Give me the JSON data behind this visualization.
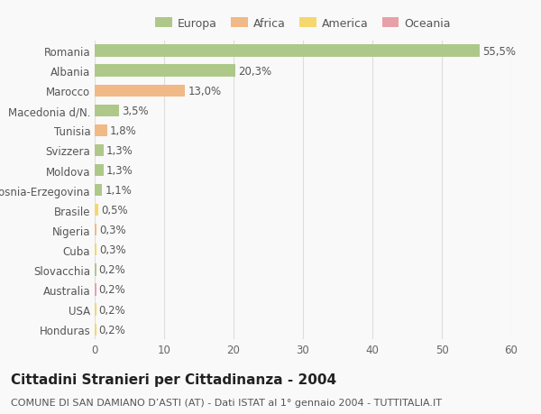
{
  "title": "Cittadini Stranieri per Cittadinanza - 2004",
  "subtitle": "COMUNE DI SAN DAMIANO D’ASTI (AT) - Dati ISTAT al 1° gennaio 2004 - TUTTITALIA.IT",
  "categories": [
    "Romania",
    "Albania",
    "Marocco",
    "Macedonia d/N.",
    "Tunisia",
    "Svizzera",
    "Moldova",
    "Bosnia-Erzegovina",
    "Brasile",
    "Nigeria",
    "Cuba",
    "Slovacchia",
    "Australia",
    "USA",
    "Honduras"
  ],
  "values": [
    55.5,
    20.3,
    13.0,
    3.5,
    1.8,
    1.3,
    1.3,
    1.1,
    0.5,
    0.3,
    0.3,
    0.2,
    0.2,
    0.2,
    0.2
  ],
  "labels": [
    "55,5%",
    "20,3%",
    "13,0%",
    "3,5%",
    "1,8%",
    "1,3%",
    "1,3%",
    "1,1%",
    "0,5%",
    "0,3%",
    "0,3%",
    "0,2%",
    "0,2%",
    "0,2%",
    "0,2%"
  ],
  "colors": [
    "#aec88a",
    "#aec88a",
    "#f0b985",
    "#aec88a",
    "#f0b985",
    "#aec88a",
    "#aec88a",
    "#aec88a",
    "#f5d76e",
    "#f0b985",
    "#f5d76e",
    "#aec88a",
    "#e8a0a8",
    "#f5d76e",
    "#f5d76e"
  ],
  "legend": [
    {
      "label": "Europa",
      "color": "#aec88a"
    },
    {
      "label": "Africa",
      "color": "#f0b985"
    },
    {
      "label": "America",
      "color": "#f5d76e"
    },
    {
      "label": "Oceania",
      "color": "#e8a0a8"
    }
  ],
  "xlim": [
    0,
    60
  ],
  "xticks": [
    0,
    10,
    20,
    30,
    40,
    50,
    60
  ],
  "background_color": "#f9f9f9",
  "grid_color": "#dddddd",
  "bar_height": 0.6,
  "label_fontsize": 8.5,
  "title_fontsize": 11,
  "subtitle_fontsize": 8,
  "tick_fontsize": 8.5,
  "legend_fontsize": 9
}
